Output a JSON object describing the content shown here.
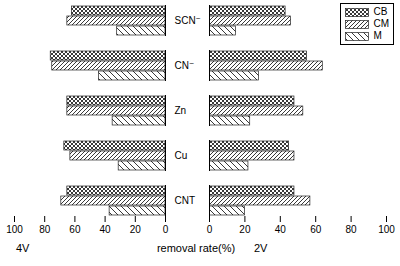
{
  "chart_data": {
    "type": "bar",
    "orientation": "horizontal",
    "x_label": "removal rate(%)",
    "categories": [
      "SCN⁻",
      "CN⁻",
      "Zn",
      "Cu",
      "CNT"
    ],
    "xlim": [
      0,
      100
    ],
    "xticks": [
      0,
      20,
      40,
      60,
      80,
      100
    ],
    "legend": "upper right",
    "panels": [
      {
        "title": "4V",
        "series": [
          {
            "name": "CB",
            "color": "#222222",
            "values": [
              62,
              76,
              65,
              67,
              65
            ]
          },
          {
            "name": "CM",
            "color": "#222222",
            "values": [
              65,
              75,
              65,
              63,
              69
            ]
          },
          {
            "name": "M",
            "color": "#222222",
            "values": [
              32,
              44,
              35,
              31,
              37
            ]
          }
        ]
      },
      {
        "title": "2V",
        "series": [
          {
            "name": "CB",
            "color": "#222222",
            "values": [
              43,
              55,
              48,
              45,
              48
            ]
          },
          {
            "name": "CM",
            "color": "#222222",
            "values": [
              46,
              64,
              53,
              48,
              57
            ]
          },
          {
            "name": "M",
            "color": "#222222",
            "values": [
              15,
              28,
              23,
              22,
              20
            ]
          }
        ]
      }
    ]
  }
}
